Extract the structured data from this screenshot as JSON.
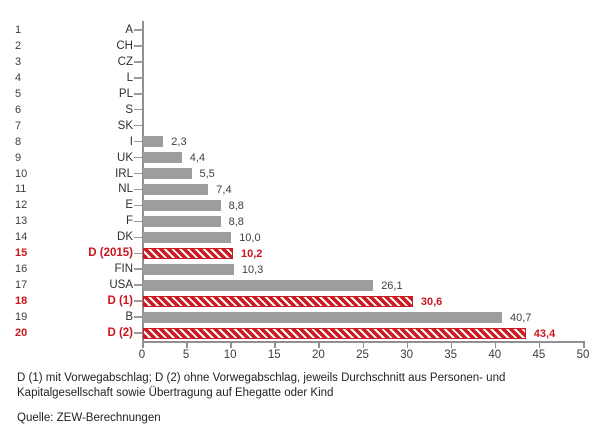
{
  "colors": {
    "bar_gray": "#9d9d9d",
    "bar_red": "#cb1a21",
    "red_text": "#c9161e",
    "axis": "#909090",
    "text": "#2e2e2e"
  },
  "chart_data": {
    "type": "bar",
    "orientation": "horizontal",
    "title": "",
    "xlabel": "",
    "ylabel": "",
    "xlim": [
      0,
      50
    ],
    "x_ticks": [
      0,
      5,
      10,
      15,
      20,
      25,
      30,
      35,
      40,
      45,
      50
    ],
    "grid": false,
    "legend": false,
    "rows": [
      {
        "rank": "1",
        "label": "A",
        "value": 0,
        "value_label": "",
        "highlight": false
      },
      {
        "rank": "2",
        "label": "CH",
        "value": 0,
        "value_label": "",
        "highlight": false
      },
      {
        "rank": "3",
        "label": "CZ",
        "value": 0,
        "value_label": "",
        "highlight": false
      },
      {
        "rank": "4",
        "label": "L",
        "value": 0,
        "value_label": "",
        "highlight": false
      },
      {
        "rank": "5",
        "label": "PL",
        "value": 0,
        "value_label": "",
        "highlight": false
      },
      {
        "rank": "6",
        "label": "S",
        "value": 0,
        "value_label": "",
        "highlight": false
      },
      {
        "rank": "7",
        "label": "SK",
        "value": 0,
        "value_label": "",
        "highlight": false
      },
      {
        "rank": "8",
        "label": "I",
        "value": 2.3,
        "value_label": "2,3",
        "highlight": false
      },
      {
        "rank": "9",
        "label": "UK",
        "value": 4.4,
        "value_label": "4,4",
        "highlight": false
      },
      {
        "rank": "10",
        "label": "IRL",
        "value": 5.5,
        "value_label": "5,5",
        "highlight": false
      },
      {
        "rank": "11",
        "label": "NL",
        "value": 7.4,
        "value_label": "7,4",
        "highlight": false
      },
      {
        "rank": "12",
        "label": "E",
        "value": 8.8,
        "value_label": "8,8",
        "highlight": false
      },
      {
        "rank": "13",
        "label": "F",
        "value": 8.8,
        "value_label": "8,8",
        "highlight": false
      },
      {
        "rank": "14",
        "label": "DK",
        "value": 10.0,
        "value_label": "10,0",
        "highlight": false
      },
      {
        "rank": "15",
        "label": "D (2015)",
        "value": 10.2,
        "value_label": "10,2",
        "highlight": true
      },
      {
        "rank": "16",
        "label": "FIN",
        "value": 10.3,
        "value_label": "10,3",
        "highlight": false
      },
      {
        "rank": "17",
        "label": "USA",
        "value": 26.1,
        "value_label": "26,1",
        "highlight": false
      },
      {
        "rank": "18",
        "label": "D (1)",
        "value": 30.6,
        "value_label": "30,6",
        "highlight": true
      },
      {
        "rank": "19",
        "label": "B",
        "value": 40.7,
        "value_label": "40,7",
        "highlight": false
      },
      {
        "rank": "20",
        "label": "D (2)",
        "value": 43.4,
        "value_label": "43,4",
        "highlight": true
      }
    ]
  },
  "footnote": {
    "lines": [
      "D (1) mit Vorwegabschlag; D (2) ohne Vorwegabschlag, jeweils Durchschnitt aus Personen- und",
      "Kapitalgesellschaft sowie Übertragung auf Ehegatte oder Kind"
    ]
  },
  "source": "Quelle: ZEW-Berechnungen"
}
